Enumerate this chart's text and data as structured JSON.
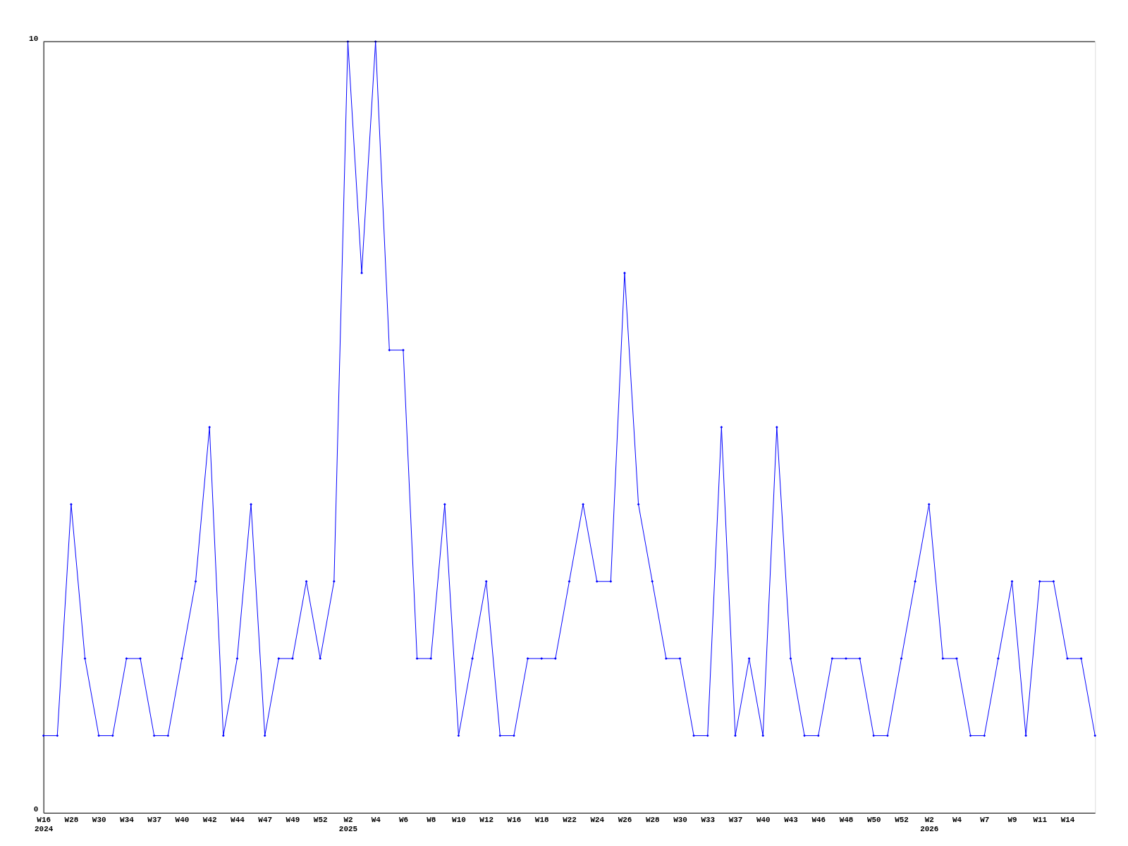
{
  "chart_data": {
    "type": "line",
    "categories": [
      "W16\n2024",
      null,
      "W28",
      null,
      "W30",
      null,
      "W34",
      null,
      "W37",
      null,
      "W40",
      null,
      "W42",
      null,
      "W44",
      null,
      "W47",
      null,
      "W49",
      null,
      "W52",
      null,
      "W2\n2025",
      null,
      "W4",
      null,
      "W6",
      null,
      "W8",
      null,
      "W10",
      null,
      "W12",
      null,
      "W16",
      null,
      "W18",
      null,
      "W22",
      null,
      "W24",
      null,
      "W26",
      null,
      "W28",
      null,
      "W30",
      null,
      "W33",
      null,
      "W37",
      null,
      "W40",
      null,
      "W43",
      null,
      "W46",
      null,
      "W48",
      null,
      "W50",
      null,
      "W52",
      null,
      "W2\n2026",
      null,
      "W4",
      null,
      "W7",
      null,
      "W9",
      null,
      "W11",
      null,
      "W14",
      null,
      null
    ],
    "series": [
      {
        "color": "#0000ff",
        "values": [
          1,
          1,
          4,
          2,
          1,
          1,
          2,
          2,
          1,
          1,
          2,
          3,
          5,
          1,
          2,
          4,
          1,
          2,
          2,
          3,
          2,
          3,
          10,
          7,
          10,
          6,
          6,
          2,
          2,
          4,
          1,
          2,
          3,
          1,
          1,
          2,
          2,
          2,
          3,
          4,
          3,
          3,
          7,
          4,
          3,
          2,
          2,
          1,
          1,
          5,
          1,
          2,
          1,
          5,
          2,
          1,
          1,
          2,
          2,
          2,
          1,
          1,
          2,
          3,
          4,
          2,
          2,
          1,
          1,
          2,
          3,
          1,
          3,
          3,
          2,
          2,
          1
        ]
      }
    ],
    "ylim": [
      0,
      10
    ],
    "yticks": [
      0,
      10
    ],
    "legend": false,
    "marker": "diamond",
    "line_style": "solid"
  }
}
